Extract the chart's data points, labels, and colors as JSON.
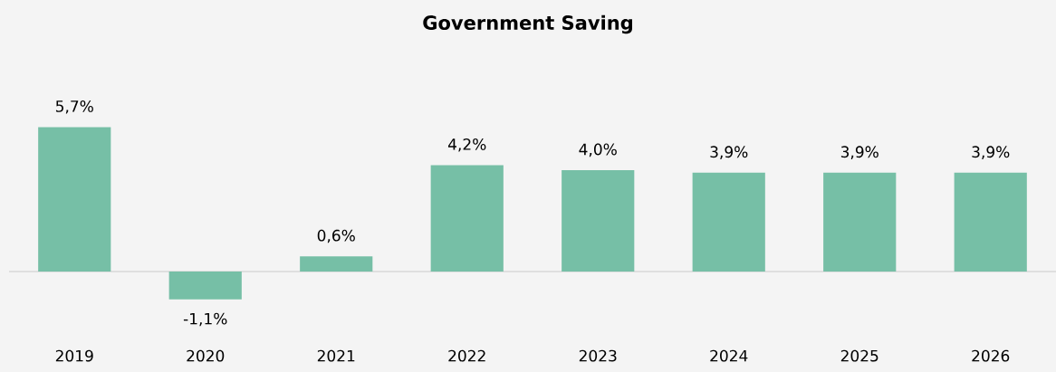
{
  "chart_data": {
    "type": "bar",
    "title": "Government Saving",
    "categories": [
      "2019",
      "2020",
      "2021",
      "2022",
      "2023",
      "2024",
      "2025",
      "2026"
    ],
    "values": [
      5.7,
      -1.1,
      0.6,
      4.2,
      4.0,
      3.9,
      3.9,
      3.9
    ],
    "value_labels": [
      "5,7%",
      "-1,1%",
      "0,6%",
      "4,2%",
      "4,0%",
      "3,9%",
      "3,9%",
      "3,9%"
    ],
    "color": "#76bfa6"
  }
}
